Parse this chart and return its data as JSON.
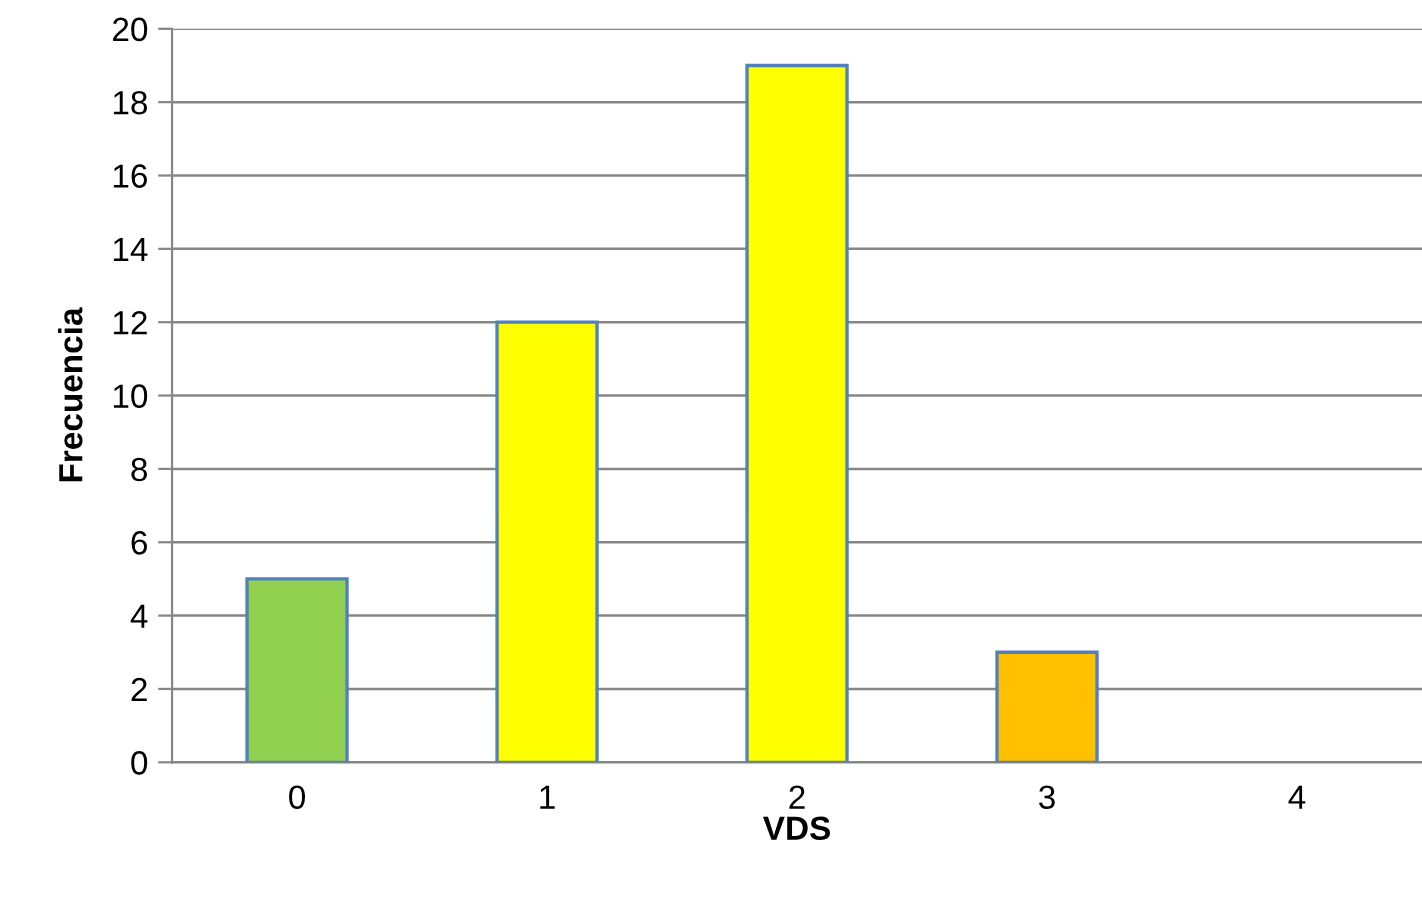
{
  "chart_data": {
    "type": "bar",
    "xlabel": "VDS",
    "ylabel": "Frecuencia",
    "categories": [
      "0",
      "1",
      "2",
      "3",
      "4"
    ],
    "values": [
      5,
      12,
      19,
      3,
      null
    ],
    "colors": [
      "#92d050",
      "#ffff00",
      "#ffff00",
      "#ffc000",
      null
    ],
    "ylim": [
      0,
      20
    ],
    "yticks": [
      0,
      2,
      4,
      6,
      8,
      10,
      12,
      14,
      16,
      18,
      20
    ],
    "grid": "y",
    "legend": false
  }
}
